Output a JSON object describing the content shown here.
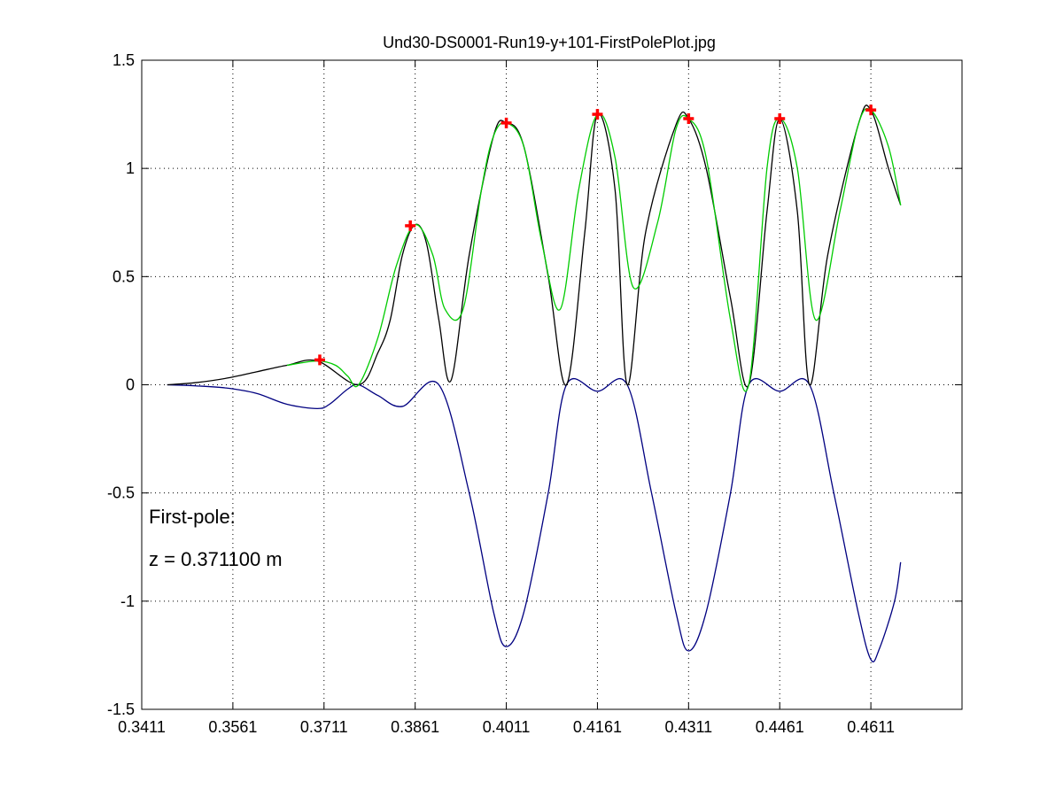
{
  "chart_data": {
    "type": "line",
    "title": "Und30-DS0001-Run19-y+101-FirstPolePlot.jpg",
    "xlabel": "",
    "ylabel": "",
    "xlim": [
      0.3411,
      0.4761
    ],
    "ylim": [
      -1.5,
      1.5
    ],
    "x_ticks": [
      "0.3411",
      "0.3561",
      "0.3711",
      "0.3861",
      "0.4011",
      "0.4161",
      "0.4311",
      "0.4461",
      "0.4611"
    ],
    "y_ticks": [
      "1.5",
      "1",
      "0.5",
      "0",
      "-0.5",
      "-1",
      "-1.5"
    ],
    "grid": true,
    "annotations": {
      "line1": "First-pole:",
      "line2": "z = 0.371100  m"
    },
    "series": [
      {
        "color": "#000080",
        "role": "lower_envelope",
        "points": [
          [
            0.3453,
            0.0
          ],
          [
            0.35,
            -0.005
          ],
          [
            0.355,
            -0.015
          ],
          [
            0.36,
            -0.04
          ],
          [
            0.365,
            -0.09
          ],
          [
            0.37,
            -0.11
          ],
          [
            0.372,
            -0.09
          ],
          [
            0.375,
            -0.02
          ],
          [
            0.3768,
            0.0
          ],
          [
            0.38,
            -0.05
          ],
          [
            0.384,
            -0.1
          ],
          [
            0.39,
            0.0
          ],
          [
            0.395,
            -0.5
          ],
          [
            0.399,
            -1.05
          ],
          [
            0.4011,
            -1.21
          ],
          [
            0.404,
            -1.05
          ],
          [
            0.408,
            -0.5
          ],
          [
            0.411,
            0.0
          ],
          [
            0.4161,
            -0.03
          ],
          [
            0.421,
            0.0
          ],
          [
            0.425,
            -0.5
          ],
          [
            0.429,
            -1.05
          ],
          [
            0.4311,
            -1.23
          ],
          [
            0.434,
            -1.05
          ],
          [
            0.438,
            -0.5
          ],
          [
            0.441,
            0.0
          ],
          [
            0.4461,
            -0.03
          ],
          [
            0.451,
            0.0
          ],
          [
            0.455,
            -0.5
          ],
          [
            0.459,
            -1.05
          ],
          [
            0.4611,
            -1.27
          ],
          [
            0.4625,
            -1.22
          ],
          [
            0.465,
            -1.0
          ],
          [
            0.466,
            -0.82
          ]
        ]
      },
      {
        "color": "#000000",
        "role": "signal_black",
        "points": [
          [
            0.3453,
            0.0
          ],
          [
            0.35,
            0.01
          ],
          [
            0.355,
            0.03
          ],
          [
            0.36,
            0.06
          ],
          [
            0.365,
            0.09
          ],
          [
            0.37,
            0.11
          ],
          [
            0.3768,
            0.0
          ],
          [
            0.38,
            0.15
          ],
          [
            0.382,
            0.3
          ],
          [
            0.384,
            0.6
          ],
          [
            0.3861,
            0.74
          ],
          [
            0.388,
            0.65
          ],
          [
            0.39,
            0.3
          ],
          [
            0.392,
            0.02
          ],
          [
            0.395,
            0.6
          ],
          [
            0.399,
            1.15
          ],
          [
            0.4011,
            1.21
          ],
          [
            0.404,
            1.1
          ],
          [
            0.408,
            0.5
          ],
          [
            0.411,
            0.0
          ],
          [
            0.414,
            0.7
          ],
          [
            0.4161,
            1.25
          ],
          [
            0.419,
            0.9
          ],
          [
            0.421,
            0.0
          ],
          [
            0.424,
            0.7
          ],
          [
            0.429,
            1.2
          ],
          [
            0.4311,
            1.23
          ],
          [
            0.434,
            1.0
          ],
          [
            0.438,
            0.4
          ],
          [
            0.441,
            0.0
          ],
          [
            0.444,
            0.8
          ],
          [
            0.4461,
            1.23
          ],
          [
            0.449,
            0.8
          ],
          [
            0.451,
            0.0
          ],
          [
            0.454,
            0.6
          ],
          [
            0.459,
            1.2
          ],
          [
            0.4611,
            1.27
          ],
          [
            0.464,
            1.0
          ],
          [
            0.466,
            0.83
          ]
        ]
      },
      {
        "color": "#00cc00",
        "role": "upper_envelope",
        "points": [
          [
            0.365,
            0.09
          ],
          [
            0.37,
            0.11
          ],
          [
            0.373,
            0.09
          ],
          [
            0.375,
            0.04
          ],
          [
            0.3768,
            0.0
          ],
          [
            0.38,
            0.22
          ],
          [
            0.383,
            0.55
          ],
          [
            0.3861,
            0.74
          ],
          [
            0.389,
            0.6
          ],
          [
            0.391,
            0.35
          ],
          [
            0.394,
            0.35
          ],
          [
            0.397,
            0.9
          ],
          [
            0.399,
            1.15
          ],
          [
            0.4011,
            1.21
          ],
          [
            0.404,
            1.1
          ],
          [
            0.407,
            0.65
          ],
          [
            0.41,
            0.35
          ],
          [
            0.413,
            0.9
          ],
          [
            0.4161,
            1.25
          ],
          [
            0.419,
            1.05
          ],
          [
            0.422,
            0.45
          ],
          [
            0.426,
            0.75
          ],
          [
            0.429,
            1.18
          ],
          [
            0.4311,
            1.23
          ],
          [
            0.434,
            1.05
          ],
          [
            0.438,
            0.3
          ],
          [
            0.441,
            0.0
          ],
          [
            0.444,
            1.0
          ],
          [
            0.4461,
            1.23
          ],
          [
            0.449,
            1.0
          ],
          [
            0.452,
            0.3
          ],
          [
            0.456,
            0.8
          ],
          [
            0.459,
            1.2
          ],
          [
            0.4611,
            1.27
          ],
          [
            0.464,
            1.1
          ],
          [
            0.466,
            0.83
          ]
        ]
      }
    ],
    "markers": {
      "color": "#ff0000",
      "symbol": "+",
      "points": [
        [
          0.3704,
          0.115
        ],
        [
          0.3853,
          0.735
        ],
        [
          0.4011,
          1.21
        ],
        [
          0.4161,
          1.25
        ],
        [
          0.4311,
          1.23
        ],
        [
          0.4461,
          1.23
        ],
        [
          0.4611,
          1.27
        ]
      ]
    }
  }
}
